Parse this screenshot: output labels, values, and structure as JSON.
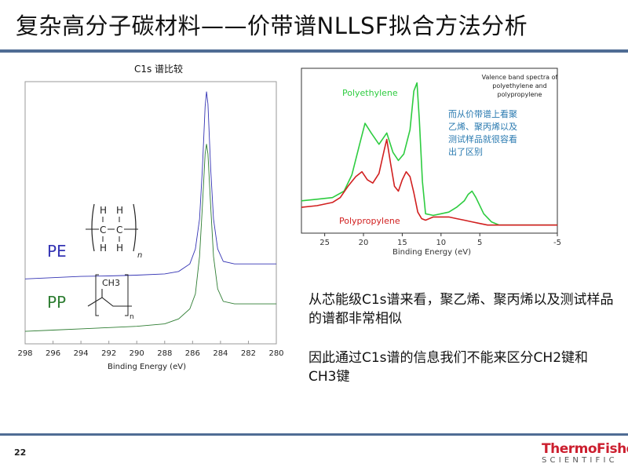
{
  "slide": {
    "title": "复杂高分子碳材料——价带谱NLLSF拟合方法分析",
    "page_number": "22",
    "body_paragraph_1": "从芯能级C1s谱来看，聚乙烯、聚丙烯以及测试样品的谱都非常相似",
    "body_paragraph_2": "因此通过C1s谱的信息我们不能来区分CH2键和CH3键"
  },
  "logo": {
    "word": "ThermoFisher",
    "sub": "SCIENTIFIC"
  },
  "colors": {
    "rule": "#4f6c94",
    "pe": "#3434b4",
    "pp": "#2e7d32",
    "polyethylene": "#2ecc40",
    "polypropylene": "#d11f1f",
    "annotation": "#2a7ab0",
    "brand": "#cc1f2f"
  },
  "chart_data": [
    {
      "type": "line",
      "title": "C1s 谱比较",
      "xlabel": "Binding Energy (eV)",
      "ylabel": "",
      "xlim": [
        298,
        280
      ],
      "x_reversed": true,
      "ticks": [
        "298",
        "296",
        "294",
        "292",
        "290",
        "288",
        "286",
        "284",
        "282",
        "280"
      ],
      "series": [
        {
          "name": "PE",
          "x": [
            298,
            296,
            294,
            292,
            290,
            288,
            287,
            286.2,
            285.8,
            285.5,
            285.3,
            285.1,
            285.0,
            284.9,
            284.7,
            284.5,
            284.2,
            283.8,
            283,
            282,
            280
          ],
          "y": [
            0.16,
            0.165,
            0.17,
            0.172,
            0.175,
            0.18,
            0.19,
            0.22,
            0.28,
            0.4,
            0.6,
            0.85,
            0.91,
            0.86,
            0.6,
            0.4,
            0.28,
            0.23,
            0.22,
            0.22,
            0.22
          ]
        },
        {
          "name": "PP",
          "x": [
            298,
            296,
            294,
            292,
            290,
            288,
            287,
            286.2,
            285.8,
            285.5,
            285.3,
            285.1,
            285.0,
            284.9,
            284.7,
            284.5,
            284.2,
            283.8,
            283,
            282,
            280
          ],
          "y": [
            -0.05,
            -0.045,
            -0.04,
            -0.035,
            -0.03,
            -0.02,
            0.0,
            0.04,
            0.1,
            0.25,
            0.45,
            0.66,
            0.7,
            0.66,
            0.45,
            0.25,
            0.12,
            0.07,
            0.06,
            0.06,
            0.06
          ]
        }
      ],
      "structure_labels": [
        {
          "series": "PE",
          "formula_atoms": [
            "H",
            "H",
            "C",
            "C",
            "H",
            "H",
            "n"
          ]
        },
        {
          "series": "PP",
          "formula_atoms": [
            "CH3",
            "n"
          ]
        }
      ]
    },
    {
      "type": "line",
      "title": "Valence band spectra of polyethylene and polypropylene",
      "title_lines": [
        "Valence band spectra of",
        "polyethylene and",
        "polypropylene"
      ],
      "xlabel": "Binding Energy (eV)",
      "ylabel": "",
      "xlim": [
        28,
        -5
      ],
      "x_reversed": true,
      "ticks": [
        "25",
        "20",
        "15",
        "10",
        "5",
        "-5"
      ],
      "annotation_lines": [
        "而从价带谱上看聚",
        "乙烯、聚丙烯以及",
        "测试样品就很容看",
        "出了区别"
      ],
      "series": [
        {
          "name": "Polyethylene",
          "x": [
            28,
            26,
            24,
            22.5,
            21.5,
            20.5,
            19.8,
            19,
            18,
            17,
            16.2,
            15.5,
            14.8,
            14,
            13.5,
            13.1,
            12.8,
            12.4,
            12,
            11,
            10,
            9,
            8,
            7,
            6.5,
            6,
            5.5,
            4.5,
            3.5,
            2.5,
            0,
            -3,
            -5
          ],
          "y": [
            0.2,
            0.21,
            0.22,
            0.26,
            0.36,
            0.55,
            0.68,
            0.62,
            0.55,
            0.62,
            0.5,
            0.45,
            0.49,
            0.64,
            0.88,
            0.93,
            0.7,
            0.32,
            0.12,
            0.11,
            0.12,
            0.13,
            0.16,
            0.2,
            0.24,
            0.26,
            0.22,
            0.12,
            0.07,
            0.05,
            0.05,
            0.05,
            0.05
          ]
        },
        {
          "name": "Polypropylene",
          "x": [
            28,
            26,
            24,
            23,
            22,
            21,
            20.2,
            19.5,
            18.8,
            18,
            17.3,
            17,
            16.5,
            16,
            15.5,
            15,
            14.5,
            14,
            13.5,
            13,
            12.5,
            12,
            11,
            10,
            9,
            8,
            7,
            6,
            5,
            4,
            3,
            0,
            -3,
            -5
          ],
          "y": [
            0.16,
            0.17,
            0.19,
            0.22,
            0.29,
            0.35,
            0.38,
            0.33,
            0.31,
            0.37,
            0.52,
            0.58,
            0.43,
            0.29,
            0.26,
            0.33,
            0.38,
            0.35,
            0.25,
            0.13,
            0.09,
            0.08,
            0.1,
            0.1,
            0.1,
            0.09,
            0.08,
            0.07,
            0.06,
            0.05,
            0.05,
            0.05,
            0.05,
            0.05
          ]
        }
      ]
    }
  ]
}
